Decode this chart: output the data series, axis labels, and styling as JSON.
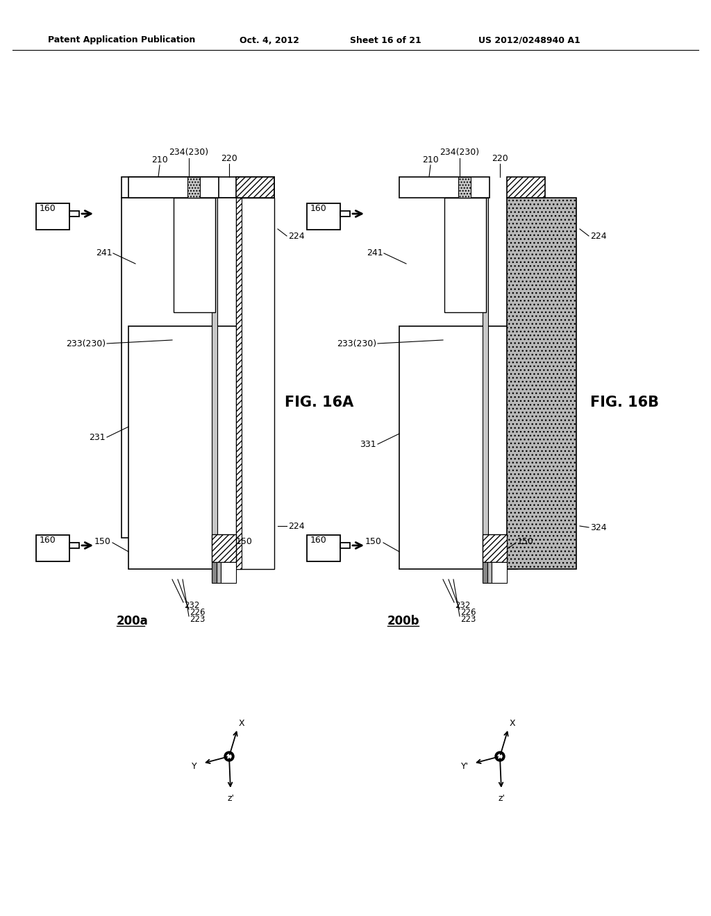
{
  "bg": "#ffffff",
  "header": {
    "left": "Patent Application Publication",
    "mid": "Oct. 4, 2012",
    "sheet": "Sheet 16 of 21",
    "right": "US 2012/0248940 A1"
  },
  "figA_label": "FIG. 16A",
  "figB_label": "FIG. 16B",
  "ref200a": "200a",
  "ref200b": "200b",
  "gray_dot": "#aaaaaa",
  "gray_stripe": "#c0c0c0",
  "gray_medium": "#999999",
  "gray_light": "#d8d8d8"
}
